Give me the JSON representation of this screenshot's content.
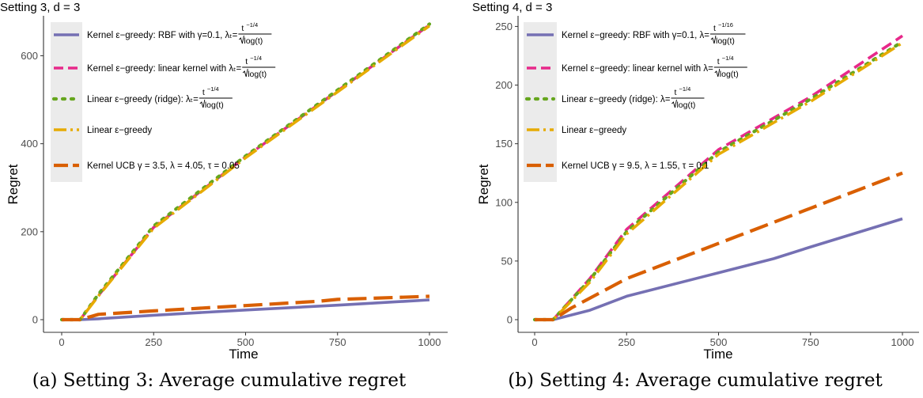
{
  "chart_data": [
    {
      "type": "line",
      "title": "Setting 3, d = 3",
      "caption": "(a) Setting 3: Average cumulative regret",
      "xlabel": "Time",
      "ylabel": "Regret",
      "xlim": [
        0,
        1000
      ],
      "ylim": [
        0,
        680
      ],
      "x_ticks": [
        0,
        250,
        500,
        750,
        1000
      ],
      "y_ticks": [
        0,
        200,
        400,
        600
      ],
      "grid": false,
      "legend_position": "top-left",
      "legend": [
        {
          "label": "Kernel ε−greedy: RBF with γ=0.1, λₜ=",
          "frac_num": "t",
          "frac_exp": "−1/4",
          "frac_den": "log(t)"
        },
        {
          "label": "Kernel ε−greedy: linear kernel with  λₜ=",
          "frac_num": "t",
          "frac_exp": "−1/4",
          "frac_den": "log(t)"
        },
        {
          "label": "Linear ε−greedy (ridge): λₜ=",
          "frac_num": "t",
          "frac_exp": "−1/4",
          "frac_den": "log(t)"
        },
        {
          "label": "Linear ε−greedy"
        },
        {
          "label": "Kernel UCB γ = 3.5, λ =  4.05, τ = 0.05"
        }
      ],
      "series": [
        {
          "x": [
            0,
            50,
            100,
            250,
            500,
            750,
            1000
          ],
          "y": [
            0,
            0,
            2,
            10,
            22,
            33,
            45
          ]
        },
        {
          "x": [
            0,
            50,
            100,
            250,
            500,
            750,
            1000
          ],
          "y": [
            0,
            0,
            55,
            210,
            370,
            520,
            670
          ]
        },
        {
          "x": [
            0,
            50,
            100,
            250,
            500,
            750,
            1000
          ],
          "y": [
            0,
            0,
            58,
            213,
            372,
            522,
            672
          ]
        },
        {
          "x": [
            0,
            50,
            100,
            250,
            500,
            750,
            1000
          ],
          "y": [
            0,
            0,
            54,
            208,
            368,
            518,
            668
          ]
        },
        {
          "x": [
            0,
            50,
            100,
            250,
            500,
            700,
            750,
            1000
          ],
          "y": [
            0,
            0,
            12,
            20,
            32,
            42,
            46,
            53
          ]
        }
      ]
    },
    {
      "type": "line",
      "title": "Setting 4, d = 3",
      "caption": "(b) Setting 4: Average cumulative regret",
      "xlabel": "Time",
      "ylabel": "Regret",
      "xlim": [
        0,
        1000
      ],
      "ylim": [
        0,
        245
      ],
      "x_ticks": [
        0,
        250,
        500,
        750,
        1000
      ],
      "y_ticks": [
        0,
        50,
        100,
        150,
        200,
        250
      ],
      "grid": false,
      "legend_position": "top-left",
      "legend": [
        {
          "label": "Kernel ε−greedy: RBF with γ=0.1, λ=",
          "frac_num": "t",
          "frac_exp": "−1/16",
          "frac_den": "log(t)"
        },
        {
          "label": "Kernel ε−greedy: linear kernel with  λ=",
          "frac_num": "t",
          "frac_exp": "−1/4",
          "frac_den": "log(t)"
        },
        {
          "label": "Linear ε−greedy (ridge): λ=",
          "frac_num": "t",
          "frac_exp": "−1/4",
          "frac_den": "log(t)"
        },
        {
          "label": "Linear ε−greedy"
        },
        {
          "label": "Kernel UCB γ = 9.5, λ =  1.55, τ = 0.1"
        }
      ],
      "series": [
        {
          "x": [
            0,
            50,
            150,
            250,
            500,
            650,
            750,
            1000
          ],
          "y": [
            0,
            0,
            8,
            20,
            40,
            52,
            62,
            86
          ]
        },
        {
          "x": [
            0,
            50,
            150,
            250,
            500,
            750,
            1000
          ],
          "y": [
            0,
            0,
            35,
            77,
            145,
            190,
            242
          ]
        },
        {
          "x": [
            0,
            50,
            150,
            250,
            500,
            750,
            1000
          ],
          "y": [
            0,
            0,
            34,
            75,
            143,
            188,
            237
          ]
        },
        {
          "x": [
            0,
            50,
            150,
            250,
            500,
            750,
            1000
          ],
          "y": [
            0,
            0,
            32,
            73,
            141,
            186,
            236
          ]
        },
        {
          "x": [
            0,
            50,
            100,
            250,
            500,
            750,
            1000
          ],
          "y": [
            0,
            0,
            10,
            35,
            65,
            95,
            125
          ]
        }
      ]
    }
  ],
  "colors": {
    "series": [
      "#7570b3",
      "#e7298a",
      "#66a61e",
      "#e6ab02",
      "#d95f02"
    ],
    "legend_bg": "#ebebeb",
    "axis": "#333333",
    "tick_text": "#4d4d4d"
  }
}
